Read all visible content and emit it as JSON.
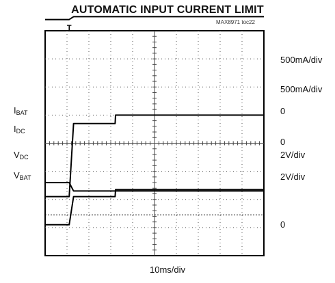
{
  "chart_data": {
    "type": "line",
    "title": "AUTOMATIC INPUT CURRENT LIMIT",
    "reference": "MAX8971 toc22",
    "xlabel": "10ms/div",
    "grid": true,
    "x_divisions": 10,
    "y_divisions": 8,
    "trigger_marker": "T",
    "series": [
      {
        "name": "IDC",
        "label_main": "I",
        "label_sub": "DC",
        "scale": "500mA/div",
        "zero": "0",
        "zero_div": 1.9,
        "x": [
          0,
          1.1,
          1.3,
          1.5,
          3.2,
          3.22,
          10
        ],
        "y": [
          0,
          0,
          2.6,
          2.6,
          2.6,
          2.9,
          2.9
        ]
      },
      {
        "name": "IBAT",
        "label_main": "I",
        "label_sub": "BAT",
        "scale": "500mA/div",
        "zero": "0",
        "zero_div": 2.9,
        "x": [
          0,
          1.1,
          1.3,
          1.5,
          3.2,
          3.22,
          10
        ],
        "y": [
          0,
          0,
          1.0,
          1.0,
          1.0,
          1.25,
          1.25
        ]
      },
      {
        "name": "VDC",
        "label_main": "V",
        "label_sub": "DC",
        "scale": "2V/div",
        "zero": "0",
        "zero_div": 1.9,
        "x": [
          0,
          1.1,
          1.3,
          10
        ],
        "y": [
          0.5,
          0.5,
          0.2,
          0.2
        ]
      },
      {
        "name": "VBAT",
        "label_main": "V",
        "label_sub": "BAT",
        "scale": "2V/div",
        "zero": "0",
        "zero_div": -1.25,
        "x": [
          0,
          1.1,
          1.3,
          10
        ],
        "y": [
          3.15,
          3.15,
          3.25,
          3.25
        ]
      }
    ]
  }
}
